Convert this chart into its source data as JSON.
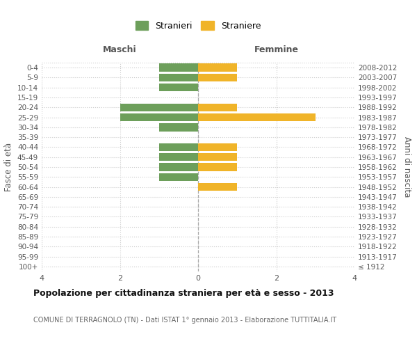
{
  "age_groups": [
    "100+",
    "95-99",
    "90-94",
    "85-89",
    "80-84",
    "75-79",
    "70-74",
    "65-69",
    "60-64",
    "55-59",
    "50-54",
    "45-49",
    "40-44",
    "35-39",
    "30-34",
    "25-29",
    "20-24",
    "15-19",
    "10-14",
    "5-9",
    "0-4"
  ],
  "birth_years": [
    "≤ 1912",
    "1913-1917",
    "1918-1922",
    "1923-1927",
    "1928-1932",
    "1933-1937",
    "1938-1942",
    "1943-1947",
    "1948-1952",
    "1953-1957",
    "1958-1962",
    "1963-1967",
    "1968-1972",
    "1973-1977",
    "1978-1982",
    "1983-1987",
    "1988-1992",
    "1993-1997",
    "1998-2002",
    "2003-2007",
    "2008-2012"
  ],
  "males": [
    0,
    0,
    0,
    0,
    0,
    0,
    0,
    0,
    0,
    1,
    1,
    1,
    1,
    0,
    1,
    2,
    2,
    0,
    1,
    1,
    1
  ],
  "females": [
    0,
    0,
    0,
    0,
    0,
    0,
    0,
    0,
    1,
    0,
    1,
    1,
    1,
    0,
    0,
    3,
    1,
    0,
    0,
    1,
    1
  ],
  "male_color": "#6d9f5b",
  "female_color": "#f0b429",
  "xlim": 4,
  "title": "Popolazione per cittadinanza straniera per età e sesso - 2013",
  "subtitle": "COMUNE DI TERRAGNOLO (TN) - Dati ISTAT 1° gennaio 2013 - Elaborazione TUTTITALIA.IT",
  "ylabel_left": "Fasce di età",
  "ylabel_right": "Anni di nascita",
  "xlabel_left": "Maschi",
  "xlabel_right": "Femmine",
  "legend_male": "Stranieri",
  "legend_female": "Straniere",
  "background_color": "#ffffff",
  "grid_color": "#cccccc"
}
